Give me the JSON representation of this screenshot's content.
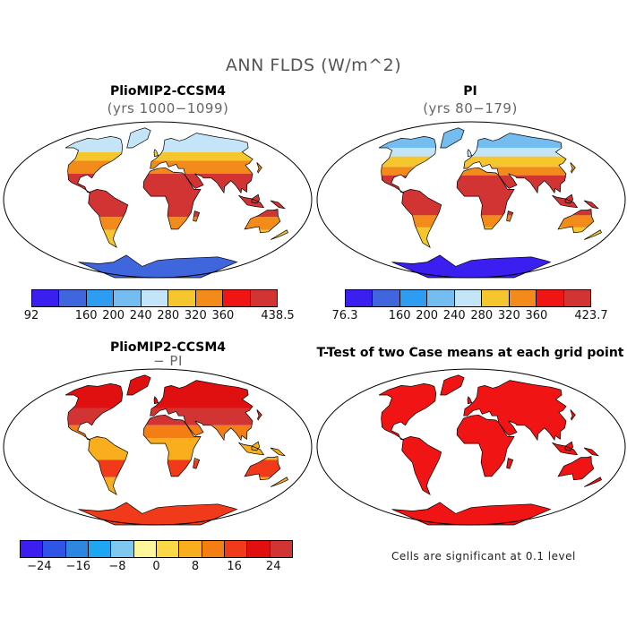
{
  "figure": {
    "title": "ANN FLDS (W/m^2)"
  },
  "panels": [
    {
      "id": "plio",
      "title": "PlioMIP2-CCSM4",
      "subtitle": "(yrs 1000−1099)"
    },
    {
      "id": "pi",
      "title": "PI",
      "subtitle": "(yrs 80−179)"
    },
    {
      "id": "diff",
      "title": "PlioMIP2-CCSM4",
      "subtitle": "− PI"
    },
    {
      "id": "ttest",
      "title": "T-Test of two Case means at each grid point",
      "note": "Cells are significant at 0.1 level"
    }
  ],
  "colorbars": {
    "plio": {
      "colors": [
        "#3b1ff0",
        "#3f66dd",
        "#2e9cf0",
        "#74bdf0",
        "#c4e4f7",
        "#f5c62e",
        "#f38b1b",
        "#f01414",
        "#d23333"
      ],
      "labels": [
        "92",
        "160",
        "200",
        "240",
        "280",
        "320",
        "360",
        "438.5"
      ],
      "label_positions": [
        0,
        2,
        3,
        4,
        5,
        6,
        7,
        9
      ]
    },
    "pi": {
      "colors": [
        "#3b1ff0",
        "#3f66dd",
        "#2e9cf0",
        "#74bdf0",
        "#c4e4f7",
        "#f5c62e",
        "#f38b1b",
        "#f01414",
        "#d23333"
      ],
      "labels": [
        "76.3",
        "160",
        "200",
        "240",
        "280",
        "320",
        "360",
        "423.7"
      ],
      "label_positions": [
        0,
        2,
        3,
        4,
        5,
        6,
        7,
        9
      ]
    },
    "diff": {
      "colors": [
        "#3b1ff0",
        "#2f55e6",
        "#2e86e0",
        "#1da6f2",
        "#7fc8f0",
        "#fff59a",
        "#fbd848",
        "#f9ae1e",
        "#f47d14",
        "#f03a1a",
        "#e01010",
        "#d23333"
      ],
      "labels": [
        "−24",
        "−16",
        "−8",
        "0",
        "8",
        "16",
        "24"
      ],
      "label_positions": [
        1,
        3,
        5,
        7,
        9,
        11,
        13
      ],
      "total_slots": 14
    }
  },
  "colors": {
    "ocean": "#ffffff",
    "map_outline": "#000000",
    "significant": "#f01414"
  }
}
